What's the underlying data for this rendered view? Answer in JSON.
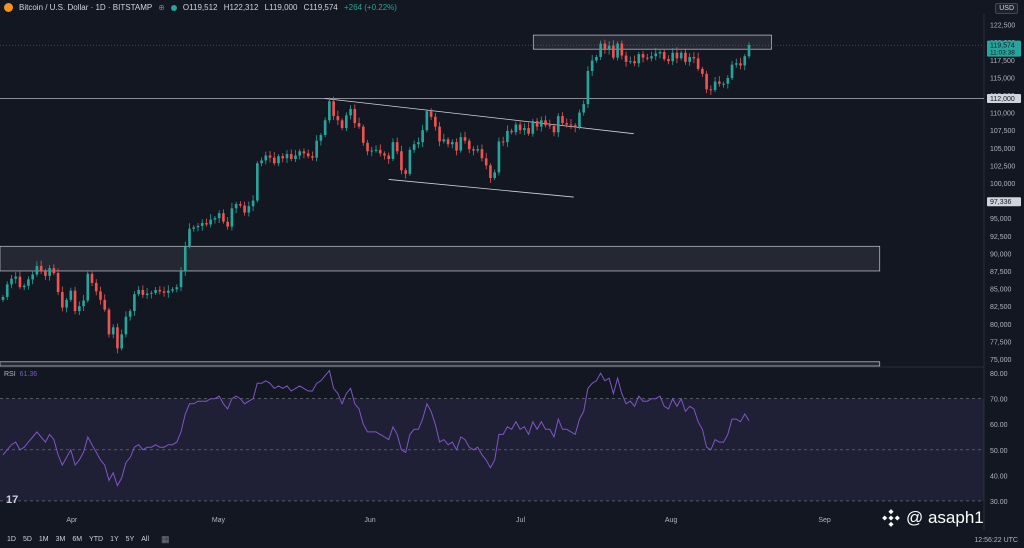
{
  "header": {
    "symbol": "Bitcoin / U.S. Dollar · 1D · BITSTAMP",
    "open": "O119,512",
    "high": "H122,312",
    "low": "L119,000",
    "close": "C119,574",
    "change": "+264 (+0.22%)",
    "currency": "USD",
    "icons": [
      "bitcoin-icon",
      "plus-icon",
      "status-dot-icon"
    ]
  },
  "bottom_bar": {
    "timeframes": [
      "1D",
      "5D",
      "1M",
      "3M",
      "6M",
      "YTD",
      "1Y",
      "5Y",
      "All"
    ],
    "clock": "12:56:22 UTC",
    "calendar_icon": "calendar-icon"
  },
  "watermark": {
    "text": "@ asaph1",
    "icon": "binance-icon"
  },
  "tv_logo": "17",
  "colors": {
    "up": "#26a69a",
    "down": "#ef5350",
    "rsi": "#7e57c2",
    "bg": "#131722",
    "grid": "#1e222d"
  },
  "chart_data": [
    {
      "type": "candlestick",
      "title": "",
      "x_axis": {
        "labels": [
          "Apr",
          "May",
          "Jun",
          "Jul",
          "Aug",
          "Sep"
        ]
      },
      "y_axis": {
        "ticks": [
          122500,
          120000,
          117500,
          115000,
          112500,
          110000,
          107500,
          105000,
          102500,
          100000,
          97500,
          95000,
          92500,
          90000,
          87500,
          85000,
          82500,
          80000,
          77500,
          75000
        ],
        "tick_labels": [
          "122,500",
          "120,000",
          "117,500",
          "115,000",
          "112,500",
          "110,000",
          "107,500",
          "105,000",
          "102,500",
          "100,000",
          "97,500",
          "95,000",
          "92,500",
          "90,000",
          "87,500",
          "85,000",
          "82,500",
          "80,000",
          "77,500",
          "75,000"
        ],
        "range": [
          74000,
          124000
        ]
      },
      "price_labels": [
        {
          "value": 119574,
          "text": "119,574",
          "subtext": "11:03:38",
          "color": "#26a69a"
        },
        {
          "value": 112000,
          "text": "112,000",
          "color": "#d1d4dc"
        },
        {
          "value": 97336,
          "text": "97,336",
          "color": "#d1d4dc"
        }
      ],
      "horizontal_lines": [
        112000
      ],
      "zones": [
        {
          "name": "resistance-zone",
          "from": 119000,
          "to": 121000,
          "start": 0.542,
          "end": 0.784
        },
        {
          "name": "support-zone",
          "from": 87500,
          "to": 91000,
          "start": 0.0,
          "end": 0.894
        },
        {
          "name": "bottom-zone",
          "from": 74000,
          "to": 74600,
          "start": 0.0,
          "end": 0.894
        }
      ],
      "trendlines": [
        {
          "name": "upper-channel",
          "from": [
            0.33,
            112000
          ],
          "to": [
            0.644,
            107000
          ]
        },
        {
          "name": "lower-channel",
          "from": [
            0.395,
            100500
          ],
          "to": [
            0.583,
            98000
          ]
        }
      ],
      "closes": [
        83800,
        85600,
        86400,
        86700,
        85200,
        85400,
        86300,
        87000,
        88200,
        87500,
        86800,
        87900,
        87200,
        84500,
        82300,
        83400,
        84700,
        81800,
        82500,
        83300,
        87100,
        85800,
        84600,
        83400,
        82000,
        78500,
        79500,
        76500,
        78500,
        81000,
        81800,
        84200,
        84800,
        84100,
        84300,
        84400,
        84800,
        84600,
        84400,
        84700,
        84900,
        85200,
        87500,
        91000,
        93500,
        93700,
        93900,
        94300,
        94100,
        94800,
        95000,
        95700,
        94500,
        93800,
        96400,
        97000,
        96800,
        95800,
        96700,
        97500,
        102800,
        103200,
        103900,
        103600,
        102800,
        103800,
        103500,
        104100,
        103400,
        103900,
        104500,
        104200,
        103800,
        103600,
        106000,
        106800,
        108900,
        111600,
        109500,
        108900,
        107800,
        109600,
        110500,
        108500,
        108000,
        105700,
        104500,
        104600,
        104700,
        104200,
        103900,
        103400,
        105800,
        104500,
        101800,
        101300,
        104700,
        105500,
        105800,
        107500,
        110200,
        109400,
        108000,
        105900,
        106200,
        105500,
        105800,
        104600,
        106500,
        106000,
        104800,
        104600,
        104800,
        103500,
        102500,
        100700,
        101500,
        105900,
        105800,
        107400,
        107200,
        108300,
        107500,
        107800,
        107000,
        108800,
        108000,
        108900,
        108200,
        108100,
        107200,
        109500,
        108500,
        108300,
        108200,
        107900,
        110000,
        111200,
        115900,
        117400,
        117900,
        119800,
        118900,
        119500,
        117800,
        119800,
        118100,
        117200,
        117300,
        117000,
        118300,
        117800,
        117700,
        118000,
        118400,
        118600,
        117600,
        117300,
        118500,
        117700,
        118500,
        117200,
        117900,
        117700,
        116200,
        115500,
        113300,
        113200,
        114400,
        114100,
        114100,
        114900,
        116800,
        117000,
        116700,
        118000,
        119574
      ],
      "rsi": {
        "label": "RSI",
        "value": "61.36",
        "ticks": [
          80,
          70,
          60,
          50,
          40,
          30
        ],
        "tick_labels": [
          "80.00",
          "70.00",
          "60.00",
          "50.00",
          "40.00",
          "30.00"
        ],
        "band": [
          30,
          70
        ],
        "range": [
          28,
          82
        ],
        "values": [
          48,
          50,
          52,
          53,
          50,
          51,
          53,
          55,
          57,
          55,
          53,
          56,
          54,
          48,
          44,
          47,
          50,
          44,
          46,
          49,
          55,
          52,
          49,
          46,
          44,
          38,
          41,
          36,
          39,
          45,
          47,
          51,
          52,
          50,
          51,
          51,
          52,
          51,
          51,
          52,
          52,
          53,
          57,
          64,
          68,
          68,
          69,
          69,
          69,
          70,
          70,
          71,
          68,
          66,
          70,
          71,
          70,
          68,
          69,
          70,
          76,
          76,
          77,
          76,
          74,
          75,
          74,
          75,
          73,
          74,
          75,
          74,
          73,
          73,
          76,
          77,
          79,
          81,
          74,
          72,
          68,
          72,
          74,
          68,
          66,
          60,
          57,
          57,
          57,
          56,
          55,
          54,
          59,
          56,
          50,
          49,
          56,
          58,
          58,
          62,
          68,
          65,
          60,
          53,
          54,
          52,
          53,
          50,
          55,
          54,
          51,
          50,
          51,
          48,
          46,
          43,
          46,
          56,
          56,
          59,
          58,
          61,
          58,
          59,
          56,
          61,
          58,
          61,
          58,
          58,
          55,
          62,
          58,
          58,
          57,
          56,
          62,
          65,
          74,
          76,
          77,
          80,
          77,
          78,
          72,
          78,
          72,
          68,
          69,
          67,
          71,
          69,
          69,
          70,
          70,
          71,
          67,
          66,
          70,
          67,
          70,
          65,
          67,
          66,
          61,
          58,
          51,
          50,
          54,
          53,
          53,
          56,
          62,
          62,
          61,
          64,
          61.36
        ]
      }
    }
  ]
}
